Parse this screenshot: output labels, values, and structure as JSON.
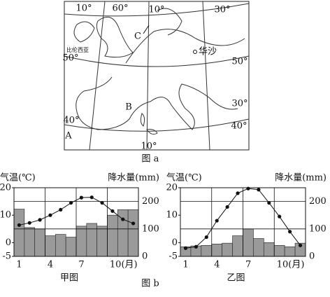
{
  "map": {
    "caption": "图 a",
    "labels": [
      "10°",
      "60°",
      "10°",
      "30°",
      "C",
      "比伦西亚",
      "50°",
      "华沙",
      "50°",
      "B",
      "30°",
      "40°",
      "40°",
      "A",
      "10°"
    ]
  },
  "figure_caption": "图 b",
  "chart_data": [
    {
      "type": "bar_line",
      "title": "甲图",
      "y_label": "气温(℃)",
      "y2_label": "降水量(mm)",
      "categories": [
        "1",
        null,
        null,
        "4",
        null,
        null,
        "7",
        null,
        null,
        "10(月)",
        null,
        null
      ],
      "ylim": [
        -5,
        20
      ],
      "yticks": [
        -5,
        0,
        10,
        20
      ],
      "y2lim": [
        0,
        250
      ],
      "y2ticks": [
        0,
        100,
        200
      ],
      "series": [
        {
          "type": "bar",
          "axis": "y2",
          "color": "#9a9a9a",
          "values": [
            172,
            105,
            100,
            75,
            80,
            70,
            110,
            120,
            110,
            150,
            170,
            170
          ]
        },
        {
          "type": "line",
          "color": "#111111",
          "values": [
            6.4,
            7.2,
            8.3,
            10,
            12,
            14.5,
            16.4,
            16.5,
            14.5,
            11.5,
            8.5,
            7
          ]
        }
      ]
    },
    {
      "type": "bar_line",
      "title": "乙图",
      "y_label": "气温(℃)",
      "y2_label": "降水量(mm)",
      "categories": [
        "1",
        null,
        null,
        "4",
        null,
        null,
        "7",
        null,
        null,
        "10(月)",
        null,
        null
      ],
      "ylim": [
        -5,
        20
      ],
      "yticks": [
        -5,
        0,
        10,
        20
      ],
      "y2lim": [
        0,
        250
      ],
      "y2ticks": [
        0,
        100,
        200
      ],
      "series": [
        {
          "type": "bar",
          "axis": "y2",
          "color": "#9a9a9a",
          "values": [
            35,
            38,
            40,
            45,
            48,
            75,
            100,
            65,
            50,
            40,
            35,
            48
          ]
        },
        {
          "type": "line",
          "color": "#111111",
          "values": [
            -2,
            -1.5,
            2,
            8,
            13,
            18,
            19.7,
            19.3,
            14.5,
            9.5,
            4,
            -1
          ]
        }
      ]
    }
  ]
}
